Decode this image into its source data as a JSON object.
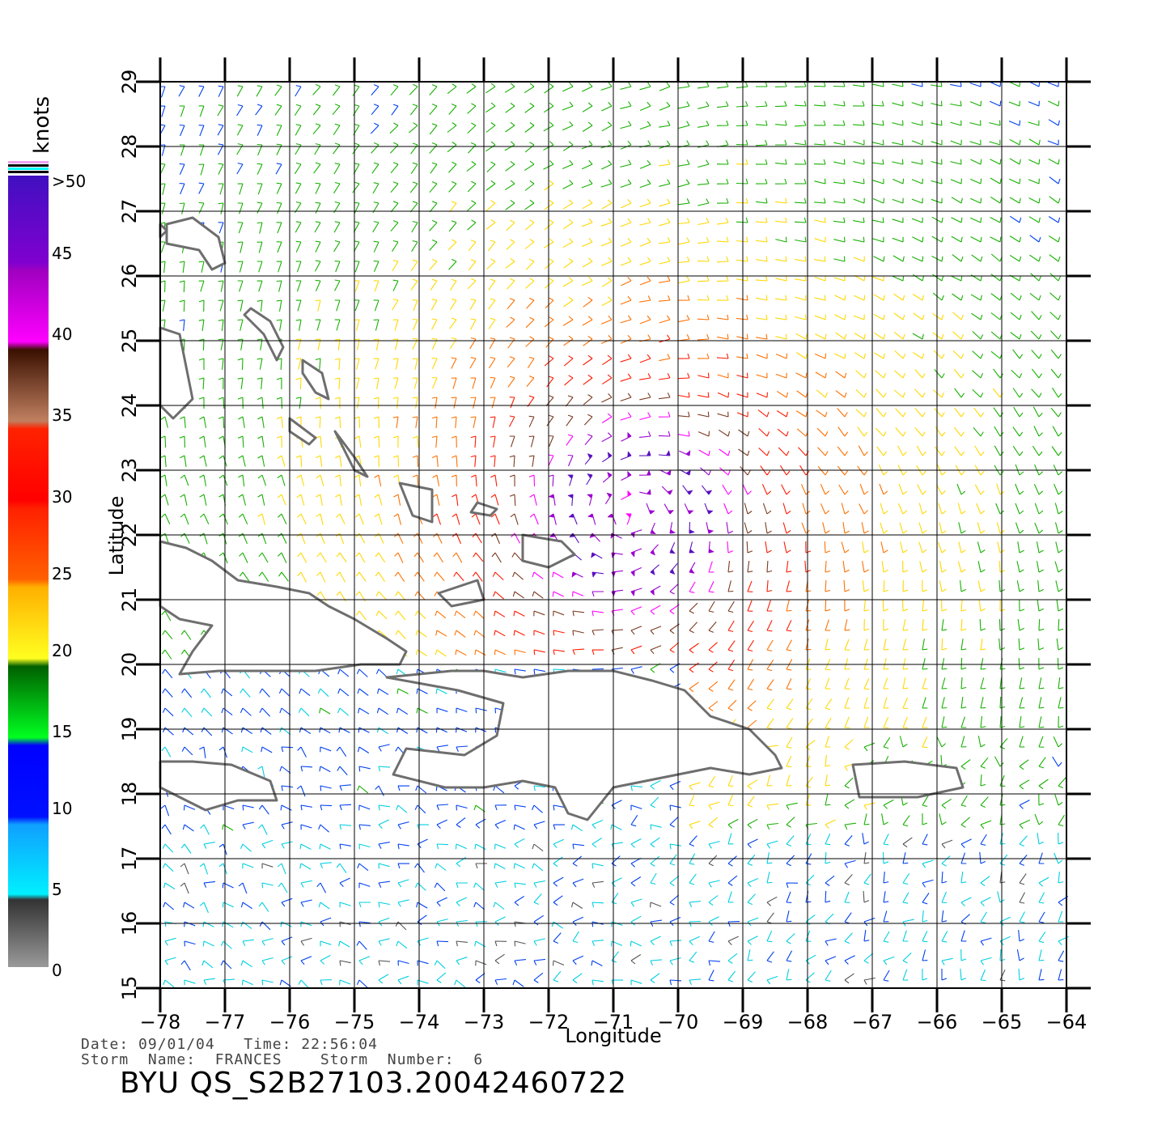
{
  "map": {
    "title_lines": {
      "line1": "Date: 09/01/04   Time: 22:56:04",
      "line2": "Storm  Name:  FRANCES    Storm  Number:  6",
      "product": "BYU  QS_S2B27103.20042460722"
    },
    "x_axis": {
      "label": "Longitude",
      "ticks": [
        -78,
        -77,
        -76,
        -75,
        -74,
        -73,
        -72,
        -71,
        -70,
        -69,
        -68,
        -67,
        -66,
        -65,
        -64
      ]
    },
    "y_axis": {
      "label": "Latitude",
      "ticks": [
        15,
        16,
        17,
        18,
        19,
        20,
        21,
        22,
        23,
        24,
        25,
        26,
        27,
        28,
        29
      ]
    },
    "extent": {
      "lon": [
        -78,
        -64
      ],
      "lat": [
        15,
        29
      ]
    },
    "storm_center": {
      "lon": -70.7,
      "lat": 22.3
    },
    "colorbar": {
      "unit": "knots",
      "tick_labels": [
        "0",
        "5",
        "10",
        "15",
        "20",
        "25",
        "30",
        "35",
        "40",
        "45",
        ">50"
      ],
      "colors": {
        "0-5": "#555555",
        "5-10": "#00cfe0",
        "10-15": "#0040f0",
        "15-20": "#16b000",
        "20-25": "#ffd800",
        "25-30": "#ff7000",
        "30-35": "#ff1a00",
        "35-40": "#7a3a20",
        "40-45": "#ff00ff",
        "45-50": "#9a00d0",
        ">50": "#5a10c0"
      }
    },
    "land_color": "#6e6e6e",
    "grid_color": "#000000"
  }
}
